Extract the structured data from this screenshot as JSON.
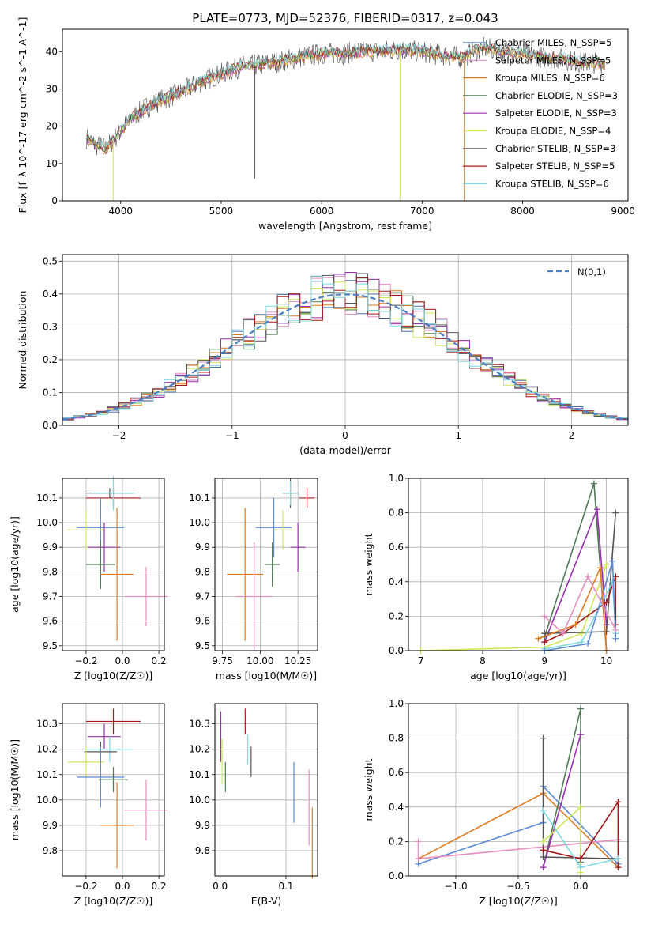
{
  "figure_title": "PLATE=0773, MJD=52376, FIBERID=0317, z=0.043",
  "colors": {
    "chabrier_miles": "#4a6fa5",
    "salpeter_miles": "#e58fc0",
    "kroupa_miles": "#e07b20",
    "chabrier_elodie": "#4e7a54",
    "salpeter_elodie": "#9a2fb0",
    "kroupa_elodie": "#cde85a",
    "chabrier_stelib": "#555555",
    "salpeter_stelib": "#a51b1b",
    "kroupa_stelib": "#7fd9e0",
    "blue_pts": "#5b8ad6",
    "gauss": "#4a7fc4"
  },
  "chart_data": [
    {
      "id": "spectrum",
      "type": "line",
      "title": "PLATE=0773, MJD=52376, FIBERID=0317, z=0.043",
      "xlabel": "wavelength [Angstrom, rest frame]",
      "ylabel": "Flux [f_λ 10^-17 erg cm^-2 s^-1 A^-1]",
      "xlim": [
        3420,
        9050
      ],
      "ylim": [
        0,
        46
      ],
      "xticks": [
        4000,
        5000,
        6000,
        7000,
        8000,
        9000
      ],
      "yticks": [
        0,
        10,
        20,
        30,
        40
      ],
      "continuum": {
        "x": [
          3650,
          3750,
          3850,
          3950,
          4100,
          4250,
          4400,
          4600,
          4800,
          5000,
          5200,
          5400,
          5600,
          5800,
          6000,
          6200,
          6400,
          6600,
          6800,
          7000,
          7200,
          7400,
          7600,
          7800,
          8000,
          8200,
          8400,
          8600,
          8800
        ],
        "y": [
          17,
          15,
          14,
          17,
          22,
          25,
          27,
          29,
          32,
          34,
          36,
          36.5,
          37.5,
          38.5,
          39.5,
          39.5,
          40,
          40,
          40.5,
          40,
          39,
          38.5,
          41,
          40,
          39.5,
          38.5,
          38,
          37,
          37
        ]
      },
      "legend": [
        {
          "label": "Chabrier MILES, N_SSP=5",
          "color_key": "chabrier_miles"
        },
        {
          "label": "Salpeter MILES, N_SSP=5",
          "color_key": "salpeter_miles"
        },
        {
          "label": "Kroupa MILES, N_SSP=6",
          "color_key": "kroupa_miles"
        },
        {
          "label": "Chabrier ELODIE, N_SSP=3",
          "color_key": "chabrier_elodie"
        },
        {
          "label": "Salpeter ELODIE, N_SSP=3",
          "color_key": "salpeter_elodie"
        },
        {
          "label": "Kroupa ELODIE, N_SSP=4",
          "color_key": "kroupa_elodie"
        },
        {
          "label": "Chabrier STELIB, N_SSP=3",
          "color_key": "chabrier_stelib"
        },
        {
          "label": "Salpeter STELIB, N_SSP=5",
          "color_key": "salpeter_stelib"
        },
        {
          "label": "Kroupa STELIB, N_SSP=6",
          "color_key": "kroupa_stelib"
        }
      ]
    },
    {
      "id": "residuals",
      "type": "bar",
      "xlabel": "(data-model)/error",
      "ylabel": "Normed distribution",
      "xlim": [
        -2.5,
        2.5
      ],
      "ylim": [
        0,
        0.52
      ],
      "xticks": [
        -2,
        -1,
        0,
        1,
        2
      ],
      "yticks": [
        0.0,
        0.1,
        0.2,
        0.3,
        0.4,
        0.5
      ],
      "grid": true,
      "legend": "N(0,1)",
      "bin_width": 0.1
    },
    {
      "id": "age_vs_Z",
      "type": "scatter",
      "xlabel": "Z [log10(Z/Z☉)]",
      "ylabel": "age [log10(age/yr)]",
      "xlim": [
        -0.33,
        0.23
      ],
      "ylim": [
        9.48,
        10.18
      ],
      "xticks": [
        -0.2,
        0.0,
        0.2
      ],
      "yticks": [
        9.5,
        9.6,
        9.7,
        9.8,
        9.9,
        10.0,
        10.1
      ],
      "grid": true,
      "points": [
        {
          "color_key": "chabrier_stelib",
          "x": -0.07,
          "xerr": 0.13,
          "y": 10.12,
          "yerr": 0.02
        },
        {
          "color_key": "salpeter_stelib",
          "x": -0.05,
          "xerr": 0.15,
          "y": 10.1,
          "yerr": 0.04
        },
        {
          "color_key": "kroupa_stelib",
          "x": -0.05,
          "xerr": 0.12,
          "y": 10.12,
          "yerr": 0.07
        },
        {
          "color_key": "blue_pts",
          "x": -0.12,
          "xerr": 0.13,
          "y": 9.98,
          "yerr": 0.12
        },
        {
          "color_key": "kroupa_elodie",
          "x": -0.2,
          "xerr": 0.1,
          "y": 9.97,
          "yerr": 0.08
        },
        {
          "color_key": "salpeter_elodie",
          "x": -0.1,
          "xerr": 0.09,
          "y": 9.9,
          "yerr": 0.1
        },
        {
          "color_key": "chabrier_elodie",
          "x": -0.12,
          "xerr": 0.08,
          "y": 9.83,
          "yerr": 0.1
        },
        {
          "color_key": "kroupa_miles",
          "x": -0.03,
          "xerr": 0.09,
          "y": 9.79,
          "yerr": 0.27
        },
        {
          "color_key": "salpeter_miles",
          "x": 0.13,
          "xerr": 0.12,
          "y": 9.7,
          "yerr": 0.12
        }
      ]
    },
    {
      "id": "age_vs_mass",
      "type": "scatter",
      "xlabel": "mass [log10(M/M☉)]",
      "ylabel": "",
      "xlim": [
        9.7,
        10.38
      ],
      "ylim": [
        9.48,
        10.18
      ],
      "xticks": [
        9.75,
        10.0,
        10.25
      ],
      "yticks": [
        9.5,
        9.6,
        9.7,
        9.8,
        9.9,
        10.0,
        10.1
      ],
      "grid": true,
      "points": [
        {
          "color_key": "salpeter_stelib",
          "x": 10.31,
          "xerr": 0.05,
          "y": 10.1,
          "yerr": 0.04
        },
        {
          "color_key": "chabrier_stelib",
          "x": 10.2,
          "xerr": 0.05,
          "y": 10.12,
          "yerr": 0.06
        },
        {
          "color_key": "kroupa_stelib",
          "x": 10.2,
          "xerr": 0.05,
          "y": 10.12,
          "yerr": 0.05
        },
        {
          "color_key": "blue_pts",
          "x": 10.09,
          "xerr": 0.12,
          "y": 9.98,
          "yerr": 0.12
        },
        {
          "color_key": "kroupa_elodie",
          "x": 10.15,
          "xerr": 0.06,
          "y": 9.97,
          "yerr": 0.08
        },
        {
          "color_key": "salpeter_elodie",
          "x": 10.25,
          "xerr": 0.05,
          "y": 9.9,
          "yerr": 0.1
        },
        {
          "color_key": "chabrier_elodie",
          "x": 10.08,
          "xerr": 0.05,
          "y": 9.83,
          "yerr": 0.09
        },
        {
          "color_key": "kroupa_miles",
          "x": 9.9,
          "xerr": 0.12,
          "y": 9.79,
          "yerr": 0.27
        },
        {
          "color_key": "salpeter_miles",
          "x": 9.96,
          "xerr": 0.12,
          "y": 9.7,
          "yerr": 0.22
        }
      ]
    },
    {
      "id": "massweight_vs_age",
      "type": "line",
      "xlabel": "age [log10(age/yr)]",
      "ylabel": "mass weight",
      "xlim": [
        6.8,
        10.35
      ],
      "ylim": [
        0,
        1.0
      ],
      "xticks": [
        7,
        8,
        9,
        10
      ],
      "yticks": [
        0.0,
        0.2,
        0.4,
        0.6,
        0.8,
        1.0
      ],
      "grid": true,
      "series": [
        {
          "color_key": "chabrier_elodie",
          "x": [
            9.0,
            9.8,
            10.0
          ],
          "y": [
            0.08,
            0.97,
            0.0
          ]
        },
        {
          "color_key": "kroupa_elodie",
          "x": [
            7.0,
            9.0,
            9.6,
            10.0
          ],
          "y": [
            0.0,
            0.02,
            0.1,
            0.5
          ]
        },
        {
          "color_key": "salpeter_elodie",
          "x": [
            9.0,
            9.85,
            10.0
          ],
          "y": [
            0.05,
            0.82,
            0.15
          ]
        },
        {
          "color_key": "chabrier_stelib",
          "x": [
            9.0,
            10.0,
            10.15
          ],
          "y": [
            0.1,
            0.11,
            0.8
          ]
        },
        {
          "color_key": "salpeter_stelib",
          "x": [
            9.0,
            9.3,
            10.0,
            10.15,
            10.15
          ],
          "y": [
            0.05,
            0.1,
            0.28,
            0.43,
            0.15
          ]
        },
        {
          "color_key": "kroupa_stelib",
          "x": [
            9.0,
            9.6,
            10.1,
            10.15
          ],
          "y": [
            0.01,
            0.05,
            0.4,
            0.1
          ]
        },
        {
          "color_key": "blue_pts",
          "x": [
            9.0,
            9.7,
            10.1,
            10.15
          ],
          "y": [
            0.0,
            0.04,
            0.52,
            0.07
          ]
        },
        {
          "color_key": "kroupa_miles",
          "x": [
            8.9,
            9.5,
            9.9,
            10.0
          ],
          "y": [
            0.07,
            0.15,
            0.48,
            0.0
          ]
        },
        {
          "color_key": "salpeter_miles",
          "x": [
            9.0,
            9.3,
            9.7,
            10.15
          ],
          "y": [
            0.2,
            0.1,
            0.43,
            0.12
          ]
        }
      ]
    },
    {
      "id": "mass_vs_Z",
      "type": "scatter",
      "xlabel": "Z [log10(Z/Z☉)]",
      "ylabel": "mass [log10(M/M☉)]",
      "xlim": [
        -0.33,
        0.23
      ],
      "ylim": [
        9.7,
        10.38
      ],
      "xticks": [
        -0.2,
        0.0,
        0.2
      ],
      "yticks": [
        9.8,
        9.9,
        10.0,
        10.1,
        10.2,
        10.3
      ],
      "grid": true,
      "points": [
        {
          "color_key": "salpeter_stelib",
          "x": -0.05,
          "xerr": 0.15,
          "y": 10.31,
          "yerr": 0.05
        },
        {
          "color_key": "salpeter_elodie",
          "x": -0.1,
          "xerr": 0.09,
          "y": 10.25,
          "yerr": 0.05
        },
        {
          "color_key": "kroupa_stelib",
          "x": -0.07,
          "xerr": 0.13,
          "y": 10.2,
          "yerr": 0.05
        },
        {
          "color_key": "chabrier_stelib",
          "x": -0.12,
          "xerr": 0.09,
          "y": 10.19,
          "yerr": 0.04
        },
        {
          "color_key": "kroupa_elodie",
          "x": -0.2,
          "xerr": 0.1,
          "y": 10.15,
          "yerr": 0.06
        },
        {
          "color_key": "blue_pts",
          "x": -0.12,
          "xerr": 0.13,
          "y": 10.09,
          "yerr": 0.12
        },
        {
          "color_key": "chabrier_elodie",
          "x": -0.05,
          "xerr": 0.08,
          "y": 10.08,
          "yerr": 0.05
        },
        {
          "color_key": "salpeter_miles",
          "x": 0.13,
          "xerr": 0.12,
          "y": 9.96,
          "yerr": 0.12
        },
        {
          "color_key": "kroupa_miles",
          "x": -0.03,
          "xerr": 0.09,
          "y": 9.9,
          "yerr": 0.17
        }
      ]
    },
    {
      "id": "mass_vs_ebv",
      "type": "scatter",
      "xlabel": "E(B-V)",
      "ylabel": "",
      "xlim": [
        -0.008,
        0.148
      ],
      "ylim": [
        9.7,
        10.38
      ],
      "xticks": [
        0.0,
        0.1
      ],
      "yticks": [
        9.8,
        9.9,
        10.0,
        10.1,
        10.2,
        10.3
      ],
      "grid": true,
      "points": [
        {
          "color_key": "salpeter_elodie",
          "x": 0.001,
          "y": 10.25,
          "yerr": 0.1
        },
        {
          "color_key": "kroupa_elodie",
          "x": 0.003,
          "y": 10.15,
          "yerr": 0.09
        },
        {
          "color_key": "chabrier_elodie",
          "x": 0.008,
          "y": 10.09,
          "yerr": 0.06
        },
        {
          "color_key": "salpeter_stelib",
          "x": 0.038,
          "y": 10.31,
          "yerr": 0.05
        },
        {
          "color_key": "kroupa_stelib",
          "x": 0.042,
          "y": 10.2,
          "yerr": 0.06
        },
        {
          "color_key": "chabrier_stelib",
          "x": 0.047,
          "y": 10.15,
          "yerr": 0.06
        },
        {
          "color_key": "blue_pts",
          "x": 0.112,
          "y": 10.03,
          "yerr": 0.12
        },
        {
          "color_key": "salpeter_miles",
          "x": 0.135,
          "y": 9.97,
          "yerr": 0.15
        },
        {
          "color_key": "kroupa_miles",
          "x": 0.14,
          "y": 9.83,
          "yerr": 0.14
        }
      ]
    },
    {
      "id": "massweight_vs_Z",
      "type": "line",
      "xlabel": "Z [log10(Z/Z☉)]",
      "ylabel": "mass weight",
      "xlim": [
        -1.38,
        0.38
      ],
      "ylim": [
        0,
        1.0
      ],
      "xticks": [
        -1.0,
        -0.5,
        0.0
      ],
      "yticks": [
        0.0,
        0.2,
        0.4,
        0.6,
        0.8,
        1.0
      ],
      "grid": true,
      "series": [
        {
          "color_key": "kroupa_miles",
          "x": [
            -1.3,
            -0.3,
            0.3
          ],
          "y": [
            0.1,
            0.48,
            0.05
          ]
        },
        {
          "color_key": "blue_pts",
          "x": [
            -1.3,
            -0.3,
            -0.3,
            0.3
          ],
          "y": [
            0.07,
            0.31,
            0.52,
            0.07
          ]
        },
        {
          "color_key": "salpeter_miles",
          "x": [
            -1.3,
            -1.3,
            0.3
          ],
          "y": [
            0.2,
            0.1,
            0.21
          ]
        },
        {
          "color_key": "chabrier_elodie",
          "x": [
            -0.3,
            0.0,
            0.0
          ],
          "y": [
            0.05,
            0.97,
            0.08
          ]
        },
        {
          "color_key": "salpeter_elodie",
          "x": [
            -0.3,
            0.0
          ],
          "y": [
            0.05,
            0.82
          ]
        },
        {
          "color_key": "chabrier_stelib",
          "x": [
            -0.3,
            -0.3,
            0.3
          ],
          "y": [
            0.8,
            0.11,
            0.1
          ]
        },
        {
          "color_key": "kroupa_elodie",
          "x": [
            -0.3,
            0.0,
            0.0
          ],
          "y": [
            0.2,
            0.4,
            0.02
          ]
        },
        {
          "color_key": "salpeter_stelib",
          "x": [
            -0.3,
            0.0,
            0.3,
            0.3
          ],
          "y": [
            0.15,
            0.1,
            0.43,
            0.05
          ]
        },
        {
          "color_key": "kroupa_stelib",
          "x": [
            -0.3,
            0.0,
            0.3
          ],
          "y": [
            0.38,
            0.05,
            0.1
          ]
        }
      ]
    }
  ]
}
